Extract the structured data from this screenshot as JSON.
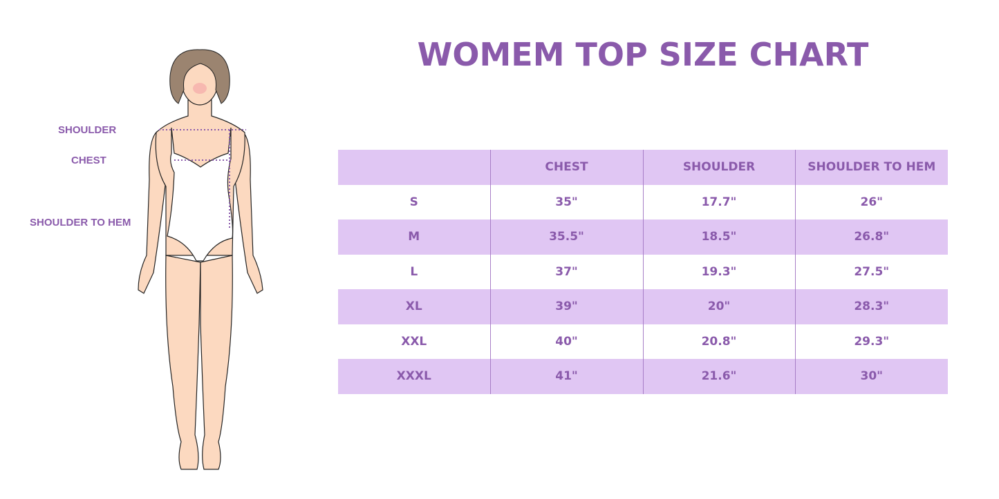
{
  "title": "WOMEM TOP SIZE CHART",
  "figure_labels": {
    "shoulder": "SHOULDER",
    "chest": "CHEST",
    "shoulder_to_hem": "SHOULDER TO HEM"
  },
  "colors": {
    "accent": "#8a5aab",
    "band": "#e0c6f3",
    "skin": "#fcd9c0",
    "hair": "#9b8470"
  },
  "table": {
    "headers": [
      "",
      "CHEST",
      "SHOULDER",
      "SHOULDER TO HEM"
    ],
    "rows": [
      [
        "S",
        "35\"",
        "17.7\"",
        "26\""
      ],
      [
        "M",
        "35.5\"",
        "18.5\"",
        "26.8\""
      ],
      [
        "L",
        "37\"",
        "19.3\"",
        "27.5\""
      ],
      [
        "XL",
        "39\"",
        "20\"",
        "28.3\""
      ],
      [
        "XXL",
        "40\"",
        "20.8\"",
        "29.3\""
      ],
      [
        "XXXL",
        "41\"",
        "21.6\"",
        "30\""
      ]
    ]
  }
}
